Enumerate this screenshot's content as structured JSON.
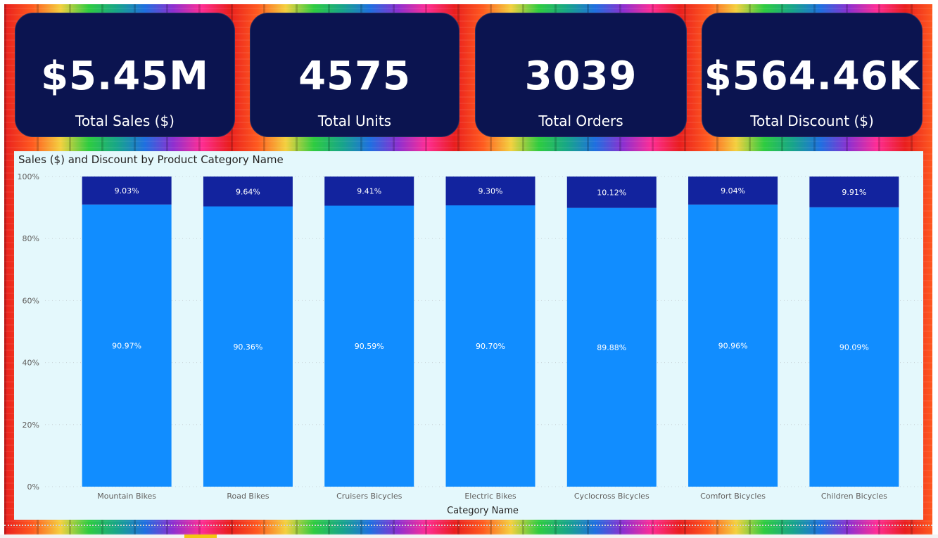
{
  "kpis": [
    {
      "value": "$5.45M",
      "label": "Total Sales ($)"
    },
    {
      "value": "4575",
      "label": "Total Units"
    },
    {
      "value": "3039",
      "label": "Total Orders"
    },
    {
      "value": "$564.46K",
      "label": "Total Discount ($)"
    }
  ],
  "colors": {
    "kpi_background": "#0b1450",
    "sales_bar": "#118dff",
    "discount_bar": "#12239e",
    "chart_background": "#e4f8fc"
  },
  "chart_data": {
    "type": "bar",
    "stacked": "100%",
    "title": "Sales ($) and Discount by Product Category Name",
    "xlabel": "Category Name",
    "ylabel": "",
    "ylim": [
      0,
      100
    ],
    "yticks": [
      "0%",
      "20%",
      "40%",
      "60%",
      "80%",
      "100%"
    ],
    "grid": true,
    "categories": [
      "Mountain Bikes",
      "Road Bikes",
      "Cruisers Bicycles",
      "Electric Bikes",
      "Cyclocross Bicycles",
      "Comfort Bicycles",
      "Children Bicycles"
    ],
    "series": [
      {
        "values": [
          90.97,
          90.36,
          90.59,
          90.7,
          89.88,
          90.96,
          90.09
        ],
        "labels": [
          "90.97%",
          "90.36%",
          "90.59%",
          "90.70%",
          "89.88%",
          "90.96%",
          "90.09%"
        ]
      },
      {
        "values": [
          9.03,
          9.64,
          9.41,
          9.3,
          10.12,
          9.04,
          9.91
        ],
        "labels": [
          "9.03%",
          "9.64%",
          "9.41%",
          "9.30%",
          "10.12%",
          "9.04%",
          "9.91%"
        ]
      }
    ]
  }
}
